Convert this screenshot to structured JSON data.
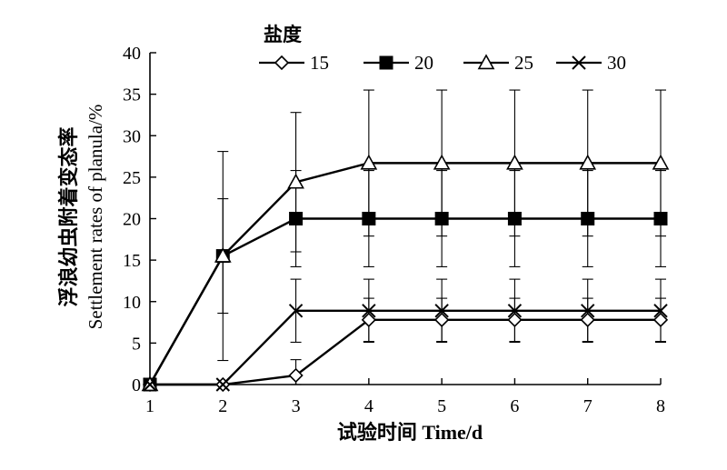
{
  "chart_data": {
    "type": "line",
    "title": "",
    "xlabel": "试验时间 Time/d",
    "ylabel_lines": [
      "浮浪幼虫附着变态率",
      "Settlement rates of planula/%"
    ],
    "legend_title": "盐度",
    "legend_position": "top",
    "x": [
      1,
      2,
      3,
      4,
      5,
      6,
      7,
      8
    ],
    "xlim": [
      1,
      8
    ],
    "ylim": [
      0,
      40
    ],
    "yticks": [
      0,
      5,
      10,
      15,
      20,
      25,
      30,
      35,
      40
    ],
    "xticks": [
      1,
      2,
      3,
      4,
      5,
      6,
      7,
      8
    ],
    "grid": false,
    "series": [
      {
        "name": "15",
        "marker": "diamond",
        "values": [
          0,
          0,
          1.1,
          7.8,
          7.8,
          7.8,
          7.8,
          7.8
        ],
        "error": [
          0,
          0,
          1.9,
          2.6,
          2.6,
          2.6,
          2.6,
          2.6
        ]
      },
      {
        "name": "20",
        "marker": "square",
        "values": [
          0,
          15.5,
          20,
          20,
          20,
          20,
          20,
          20
        ],
        "error": [
          0,
          12.6,
          5.8,
          5.8,
          5.8,
          5.8,
          5.8,
          5.8
        ]
      },
      {
        "name": "25",
        "marker": "triangle",
        "values": [
          0,
          15.5,
          24.4,
          26.7,
          26.7,
          26.7,
          26.7,
          26.7
        ],
        "error": [
          0,
          6.9,
          8.4,
          8.8,
          8.8,
          8.8,
          8.8,
          8.8
        ]
      },
      {
        "name": "30",
        "marker": "cross",
        "values": [
          0,
          0,
          8.9,
          8.9,
          8.9,
          8.9,
          8.9,
          8.9
        ],
        "error": [
          0,
          0,
          3.8,
          3.8,
          3.8,
          3.8,
          3.8,
          3.8
        ]
      }
    ]
  }
}
